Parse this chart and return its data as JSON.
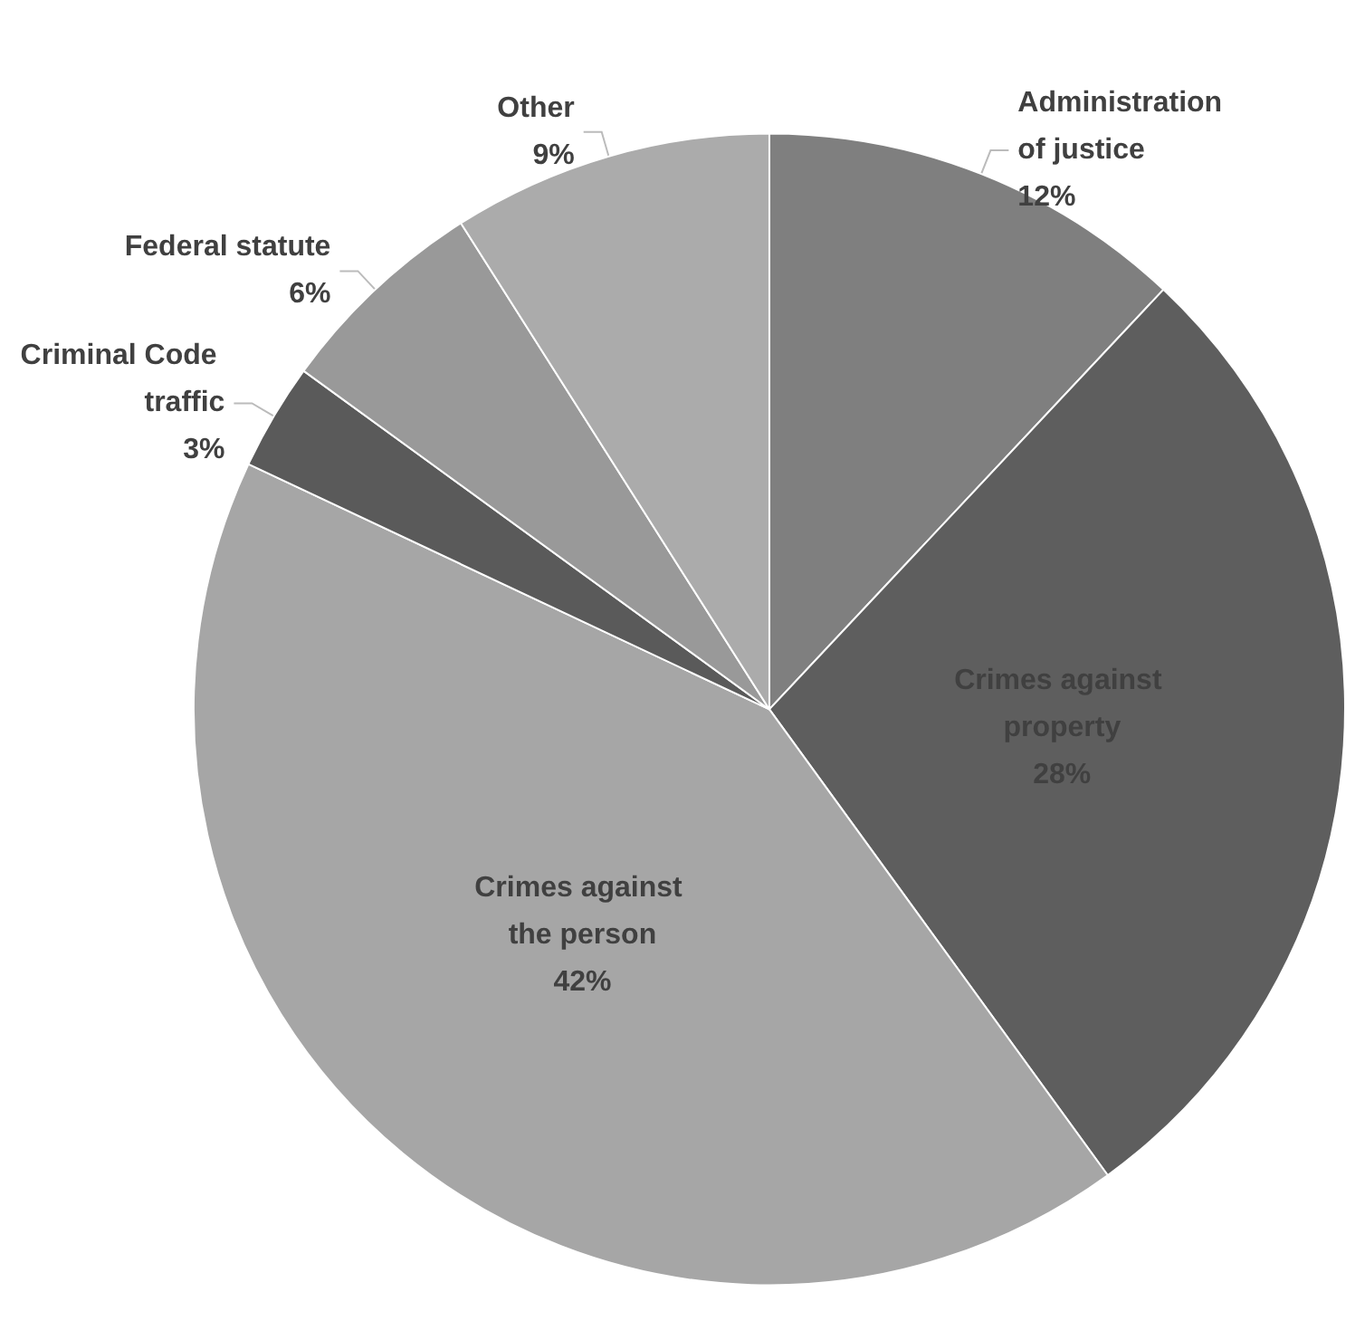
{
  "chart_data": {
    "type": "pie",
    "categories": [
      "Administration of justice",
      "Crimes against property",
      "Crimes against the person",
      "Criminal Code traffic",
      "Federal statute",
      "Other"
    ],
    "values": [
      12,
      28,
      42,
      3,
      6,
      9
    ],
    "colors": [
      "#7f7f7f",
      "#5e5e5e",
      "#a6a6a6",
      "#5a5a5a",
      "#999999",
      "#ababab"
    ],
    "value_labels": [
      "12%",
      "28%",
      "42%",
      "3%",
      "6%",
      "9%"
    ]
  }
}
